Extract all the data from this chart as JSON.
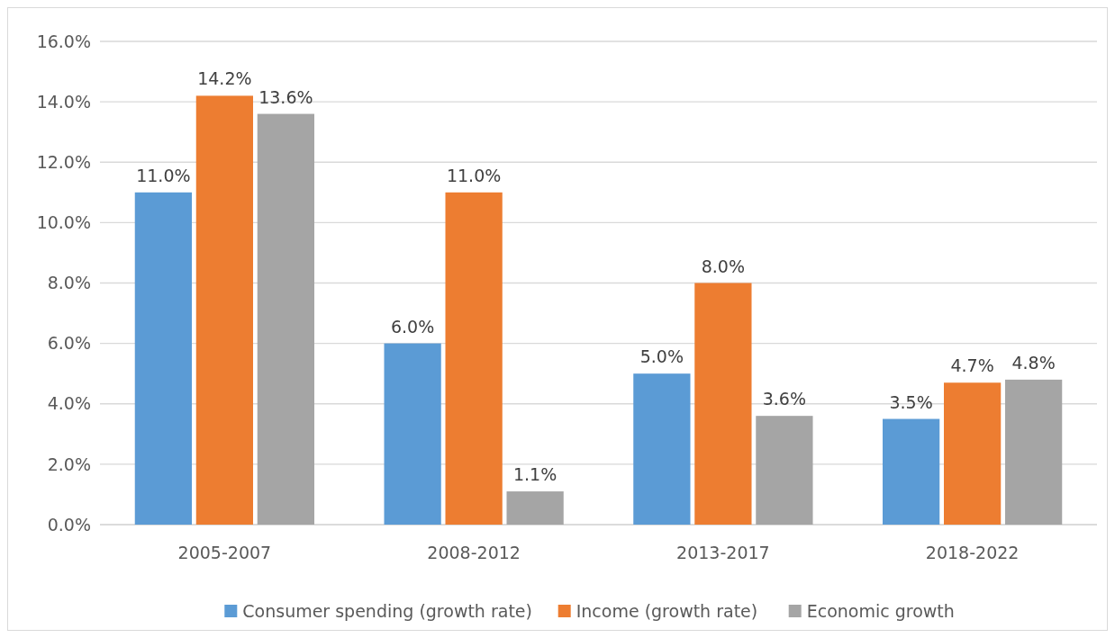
{
  "chart_data": {
    "type": "bar",
    "categories": [
      "2005-2007",
      "2008-2012",
      "2013-2017",
      "2018-2022"
    ],
    "series": [
      {
        "name": "Consumer spending (growth rate)",
        "color": "#5b9bd5",
        "values": [
          11.0,
          6.0,
          5.0,
          3.5
        ],
        "value_labels": [
          "11.0%",
          "6.0%",
          "5.0%",
          "3.5%"
        ]
      },
      {
        "name": "Income (growth rate)",
        "color": "#ed7d31",
        "values": [
          14.2,
          11.0,
          8.0,
          4.7
        ],
        "value_labels": [
          "14.2%",
          "11.0%",
          "8.0%",
          "4.7%"
        ]
      },
      {
        "name": "Economic growth",
        "color": "#a5a5a5",
        "values": [
          13.6,
          1.1,
          3.6,
          4.8
        ],
        "value_labels": [
          "13.6%",
          "1.1%",
          "3.6%",
          "4.8%"
        ]
      }
    ],
    "ylim": [
      0,
      16
    ],
    "yticks": [
      {
        "value": 0,
        "label": "0.0%"
      },
      {
        "value": 2,
        "label": "2.0%"
      },
      {
        "value": 4,
        "label": "4.0%"
      },
      {
        "value": 6,
        "label": "6.0%"
      },
      {
        "value": 8,
        "label": "8.0%"
      },
      {
        "value": 10,
        "label": "10.0%"
      },
      {
        "value": 12,
        "label": "12.0%"
      },
      {
        "value": 14,
        "label": "14.0%"
      },
      {
        "value": 16,
        "label": "16.0%"
      }
    ],
    "grid": "y",
    "legend": "bottom"
  }
}
